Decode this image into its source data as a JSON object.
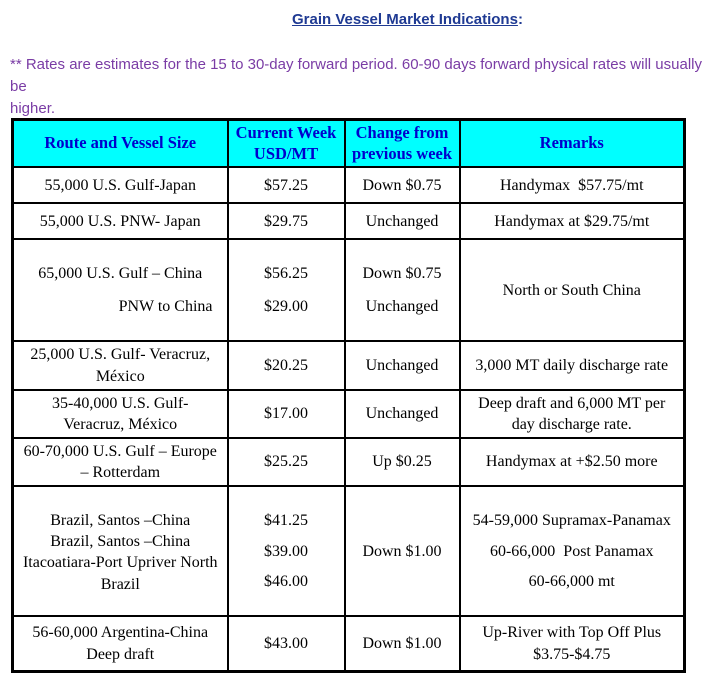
{
  "page": {
    "title": "Grain Vessel Market Indications",
    "title_suffix": ":",
    "note": "** Rates are estimates for the 15 to 30-day forward period. 60-90 days forward physical rates will usually be\nhigher."
  },
  "colors": {
    "header_bg": "#00FFFF",
    "header_text": "#0000CC",
    "title_text": "#1F3A93",
    "note_text": "#7A3CA5"
  },
  "table": {
    "headers": {
      "route": "Route and Vessel Size",
      "current_week": "Current Week\nUSD/MT",
      "change": "Change from\nprevious week",
      "remarks": "Remarks"
    },
    "rows": [
      {
        "route": "55,000 U.S. Gulf-Japan",
        "usd": "$57.25",
        "change": "Down $0.75",
        "remarks": "Handymax  $57.75/mt"
      },
      {
        "route": "55,000 U.S. PNW- Japan",
        "usd": "$29.75",
        "change": "Unchanged",
        "remarks": "Handymax at $29.75/mt"
      },
      {
        "route_line1": "65,000 U.S. Gulf – China",
        "route_line2": "PNW to China",
        "usd_line1": "$56.25",
        "usd_line2": "$29.00",
        "change_line1": "Down $0.75",
        "change_line2": "Unchanged",
        "remarks": "North or South China"
      },
      {
        "route": "25,000 U.S. Gulf- Veracruz,\nMéxico",
        "usd": "$20.25",
        "change": "Unchanged",
        "remarks": "3,000 MT daily discharge rate"
      },
      {
        "route": "35-40,000 U.S. Gulf-\nVeracruz, México",
        "usd": "$17.00",
        "change": "Unchanged",
        "remarks": "Deep draft and 6,000 MT per\nday discharge rate."
      },
      {
        "route": "60-70,000 U.S. Gulf – Europe\n– Rotterdam",
        "usd": "$25.25",
        "change": "Up $0.25",
        "remarks": "Handymax at +$2.50 more"
      },
      {
        "route_line1": "Brazil, Santos –China",
        "route_line2": "Brazil, Santos –China",
        "route_line3": "Itacoatiara-Port Upriver North\nBrazil",
        "usd_line1": "$41.25",
        "usd_line2": "$39.00",
        "usd_line3": "$46.00",
        "change": "Down $1.00",
        "remarks_line1": "54-59,000 Supramax-Panamax",
        "remarks_line2": "60-66,000  Post Panamax",
        "remarks_line3": "60-66,000 mt"
      },
      {
        "route": "56-60,000 Argentina-China\nDeep draft",
        "usd": "$43.00",
        "change": "Down $1.00",
        "remarks": "Up-River with Top Off Plus\n$3.75-$4.75"
      }
    ]
  }
}
